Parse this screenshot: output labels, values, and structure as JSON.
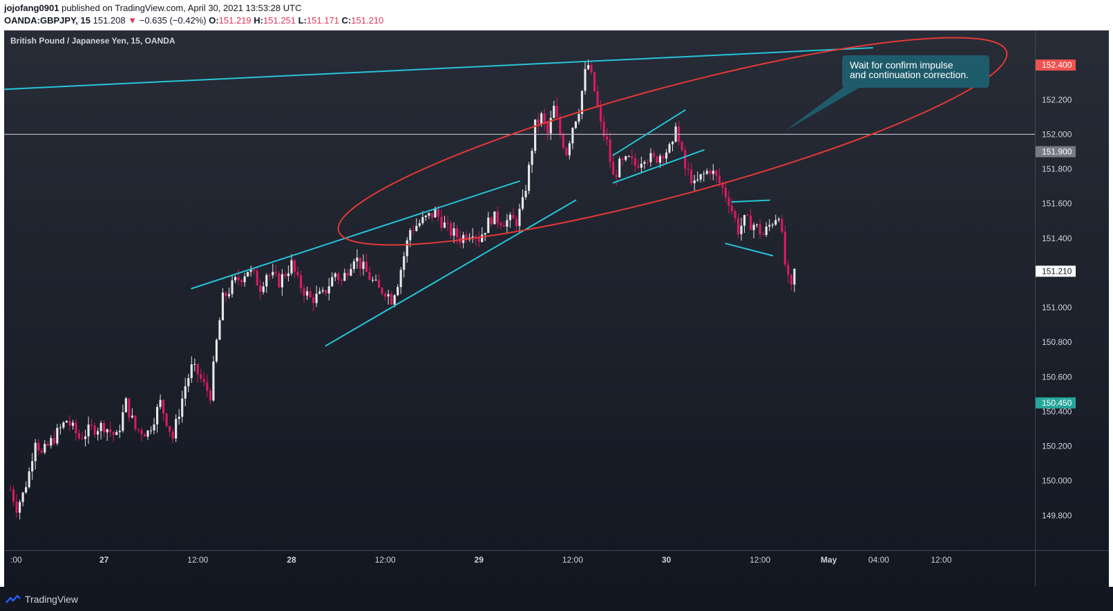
{
  "header": {
    "publisher": "jojofang0901",
    "published_text": "published on TradingView.com, April 30, 2021 13:53:28 UTC",
    "symbol": "OANDA:GBPJPY, 15",
    "last": "151.208",
    "change": "−0.635 (−0.42%)",
    "open_label": "O:",
    "open": "151.219",
    "high_label": "H:",
    "high": "151.251",
    "low_label": "L:",
    "low": "151.171",
    "close_label": "C:",
    "close": "151.210",
    "down_arrow": "▼"
  },
  "footer": {
    "brand": "TradingView",
    "logo_icon": "tradingview-logo-icon"
  },
  "colors": {
    "background": "#131722",
    "up": "#e8e8e8",
    "down": "#d81b60",
    "trendline": "#26c6da",
    "ellipse": "#e53935",
    "level": "#b2b5be",
    "badge_red": "#ef5350",
    "badge_teal": "#26a69a",
    "callout": "#1f5c6b"
  },
  "chart_data": {
    "type": "candlestick",
    "title": "British Pound / Japanese Yen, 15, OANDA",
    "ylim": [
      149.6,
      152.6
    ],
    "yticks": [
      "149.800",
      "150.000",
      "150.200",
      "150.400",
      "150.600",
      "150.800",
      "151.000",
      "151.200",
      "151.400",
      "151.600",
      "151.800",
      "152.000",
      "152.200",
      "152.400"
    ],
    "xticks": [
      {
        "label": ":00",
        "bar": 0
      },
      {
        "label": "27",
        "bar": 30
      },
      {
        "label": "12:00",
        "bar": 60
      },
      {
        "label": "28",
        "bar": 90
      },
      {
        "label": "12:00",
        "bar": 120
      },
      {
        "label": "29",
        "bar": 150
      },
      {
        "label": "12:00",
        "bar": 180
      },
      {
        "label": "30",
        "bar": 210
      },
      {
        "label": "12:00",
        "bar": 240
      },
      {
        "label": "May",
        "bar": 262
      },
      {
        "label": "04:00",
        "bar": 278
      },
      {
        "label": "12:00",
        "bar": 298
      }
    ],
    "bar_count_visible": 330,
    "anchors": [
      [
        0,
        149.95
      ],
      [
        2,
        149.85
      ],
      [
        4,
        149.92
      ],
      [
        6,
        150.05
      ],
      [
        8,
        150.25
      ],
      [
        10,
        150.15
      ],
      [
        14,
        150.25
      ],
      [
        18,
        150.35
      ],
      [
        22,
        150.25
      ],
      [
        26,
        150.3
      ],
      [
        30,
        150.32
      ],
      [
        34,
        150.25
      ],
      [
        37,
        150.45
      ],
      [
        40,
        150.3
      ],
      [
        44,
        150.28
      ],
      [
        48,
        150.45
      ],
      [
        50,
        150.35
      ],
      [
        52,
        150.25
      ],
      [
        54,
        150.4
      ],
      [
        56,
        150.55
      ],
      [
        58,
        150.65
      ],
      [
        60,
        150.62
      ],
      [
        62,
        150.55
      ],
      [
        64,
        150.5
      ],
      [
        66,
        150.8
      ],
      [
        68,
        151.05
      ],
      [
        70,
        151.1
      ],
      [
        72,
        151.15
      ],
      [
        74,
        151.18
      ],
      [
        76,
        151.22
      ],
      [
        78,
        151.18
      ],
      [
        80,
        151.12
      ],
      [
        82,
        151.2
      ],
      [
        86,
        151.15
      ],
      [
        90,
        151.25
      ],
      [
        92,
        151.15
      ],
      [
        96,
        151.05
      ],
      [
        100,
        151.07
      ],
      [
        104,
        151.2
      ],
      [
        106,
        151.15
      ],
      [
        110,
        151.3
      ],
      [
        114,
        151.2
      ],
      [
        118,
        151.1
      ],
      [
        120,
        151.1
      ],
      [
        122,
        151.05
      ],
      [
        124,
        151.15
      ],
      [
        126,
        151.3
      ],
      [
        128,
        151.45
      ],
      [
        132,
        151.5
      ],
      [
        136,
        151.55
      ],
      [
        138,
        151.5
      ],
      [
        140,
        151.45
      ],
      [
        144,
        151.4
      ],
      [
        148,
        151.45
      ],
      [
        150,
        151.4
      ],
      [
        154,
        151.52
      ],
      [
        158,
        151.5
      ],
      [
        162,
        151.5
      ],
      [
        164,
        151.6
      ],
      [
        166,
        151.8
      ],
      [
        168,
        152.05
      ],
      [
        170,
        152.1
      ],
      [
        172,
        152.0
      ],
      [
        174,
        152.15
      ],
      [
        176,
        152.0
      ],
      [
        178,
        151.9
      ],
      [
        180,
        152.05
      ],
      [
        182,
        152.15
      ],
      [
        184,
        152.35
      ],
      [
        185,
        152.4
      ],
      [
        187,
        152.25
      ],
      [
        189,
        152.05
      ],
      [
        191,
        151.95
      ],
      [
        193,
        151.75
      ],
      [
        195,
        151.82
      ],
      [
        198,
        151.85
      ],
      [
        200,
        151.82
      ],
      [
        203,
        151.88
      ],
      [
        206,
        151.85
      ],
      [
        209,
        151.9
      ],
      [
        212,
        151.92
      ],
      [
        213,
        152.08
      ],
      [
        214,
        151.95
      ],
      [
        216,
        151.8
      ],
      [
        218,
        151.75
      ],
      [
        219,
        151.7
      ],
      [
        221,
        151.75
      ],
      [
        224,
        151.8
      ],
      [
        227,
        151.72
      ],
      [
        230,
        151.62
      ],
      [
        233,
        151.45
      ],
      [
        235,
        151.5
      ],
      [
        238,
        151.48
      ],
      [
        241,
        151.42
      ],
      [
        244,
        151.5
      ],
      [
        246,
        151.55
      ],
      [
        247,
        151.4
      ],
      [
        248,
        151.25
      ],
      [
        249,
        151.15
      ],
      [
        250,
        151.1
      ],
      [
        251,
        151.21
      ]
    ],
    "last_bar": 251,
    "annotations": {
      "callout_text": [
        "Wait for confirm impulse",
        "and continuation correction."
      ],
      "horizontal_level": 152.0,
      "price_badges": [
        {
          "value": "152.400",
          "price": 152.4,
          "color": "#ef5350",
          "text_color": "#ffffff"
        },
        {
          "value": "151.900",
          "price": 151.9,
          "color": "#787b86",
          "text_color": "#ffffff"
        },
        {
          "value": "151.210",
          "price": 151.21,
          "color": "#ffffff",
          "text_color": "#131722"
        },
        {
          "value": "150.450",
          "price": 150.45,
          "color": "#26a69a",
          "text_color": "#ffffff"
        }
      ],
      "trendlines": [
        {
          "from": [
            -2,
            152.26
          ],
          "to": [
            276,
            152.5
          ]
        },
        {
          "from": [
            58,
            151.11
          ],
          "to": [
            163,
            151.73
          ]
        },
        {
          "from": [
            101,
            150.78
          ],
          "to": [
            181,
            151.62
          ]
        },
        {
          "from": [
            193,
            151.88
          ],
          "to": [
            216,
            152.14
          ]
        },
        {
          "from": [
            193,
            151.72
          ],
          "to": [
            222,
            151.91
          ]
        },
        {
          "from": [
            231,
            151.61
          ],
          "to": [
            243,
            151.62
          ]
        },
        {
          "from": [
            229,
            151.37
          ],
          "to": [
            244,
            151.3
          ]
        }
      ],
      "ellipse": {
        "center": [
          212,
          151.96
        ],
        "rx_bars": 27,
        "ry_price": 0.24,
        "rotate_deg": -15
      },
      "callout_pointer": [
        248,
        152.02
      ]
    }
  }
}
